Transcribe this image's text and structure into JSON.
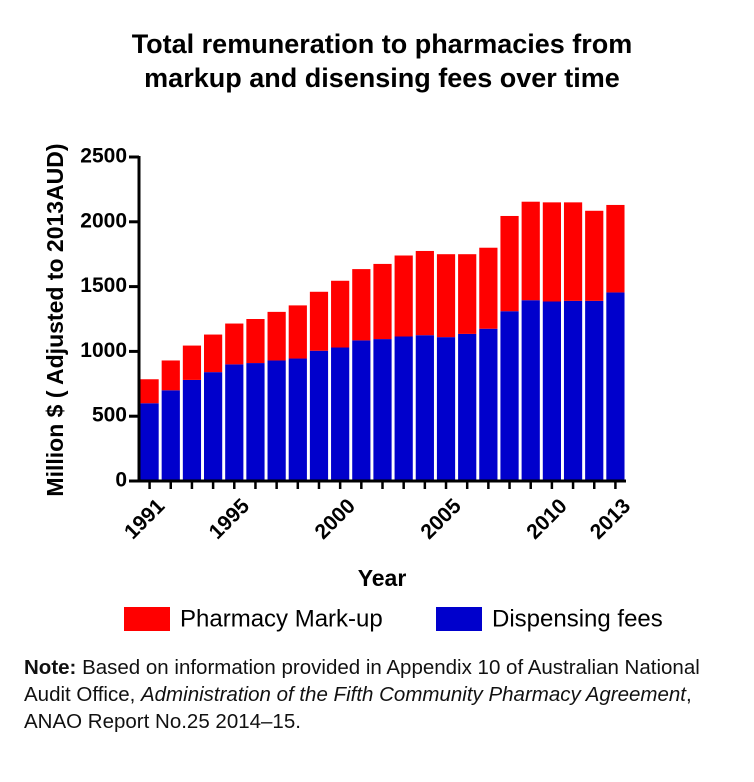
{
  "chart_data": {
    "type": "bar",
    "stacked": true,
    "title_lines": [
      "Total remuneration to pharmacies from",
      "markup and disensing fees over time"
    ],
    "xlabel": "Year",
    "ylabel": "Million $ ( Adjusted to 2013AUD)",
    "ylim": [
      0,
      2500
    ],
    "yticks": [
      0,
      500,
      1000,
      1500,
      2000,
      2500
    ],
    "grid": false,
    "legend_position": "bottom",
    "categories": [
      "1991",
      "1992",
      "1993",
      "1994",
      "1995",
      "1996",
      "1997",
      "1998",
      "1999",
      "2000",
      "2001",
      "2002",
      "2003",
      "2004",
      "2005",
      "2006",
      "2007",
      "2008",
      "2009",
      "2010",
      "2011",
      "2012",
      "2013"
    ],
    "x_tick_labels": [
      "1991",
      "1995",
      "2000",
      "2005",
      "2010",
      "2013"
    ],
    "series": [
      {
        "name": "Dispensing fees",
        "color": "#0000cc",
        "values": [
          600,
          700,
          780,
          840,
          900,
          910,
          930,
          945,
          1005,
          1030,
          1085,
          1095,
          1115,
          1125,
          1110,
          1135,
          1175,
          1310,
          1395,
          1385,
          1390,
          1390,
          1455
        ]
      },
      {
        "name": "Pharmacy Mark-up",
        "color": "#ff0000",
        "values": [
          185,
          230,
          265,
          290,
          315,
          340,
          375,
          410,
          455,
          515,
          550,
          580,
          625,
          650,
          640,
          615,
          625,
          735,
          760,
          765,
          760,
          695,
          675
        ]
      }
    ],
    "legend": [
      {
        "label": "Pharmacy Mark-up",
        "color": "#ff0000"
      },
      {
        "label": "Dispensing fees",
        "color": "#0000cc"
      }
    ]
  },
  "note": {
    "bold_label": "Note:",
    "text_1": " Based on information provided in Appendix 10 of Australian National Audit Office, ",
    "italic_text": "Administration of the Fifth Community Pharmacy Agreement",
    "text_2": ", ANAO Report No.25 2014–15."
  }
}
